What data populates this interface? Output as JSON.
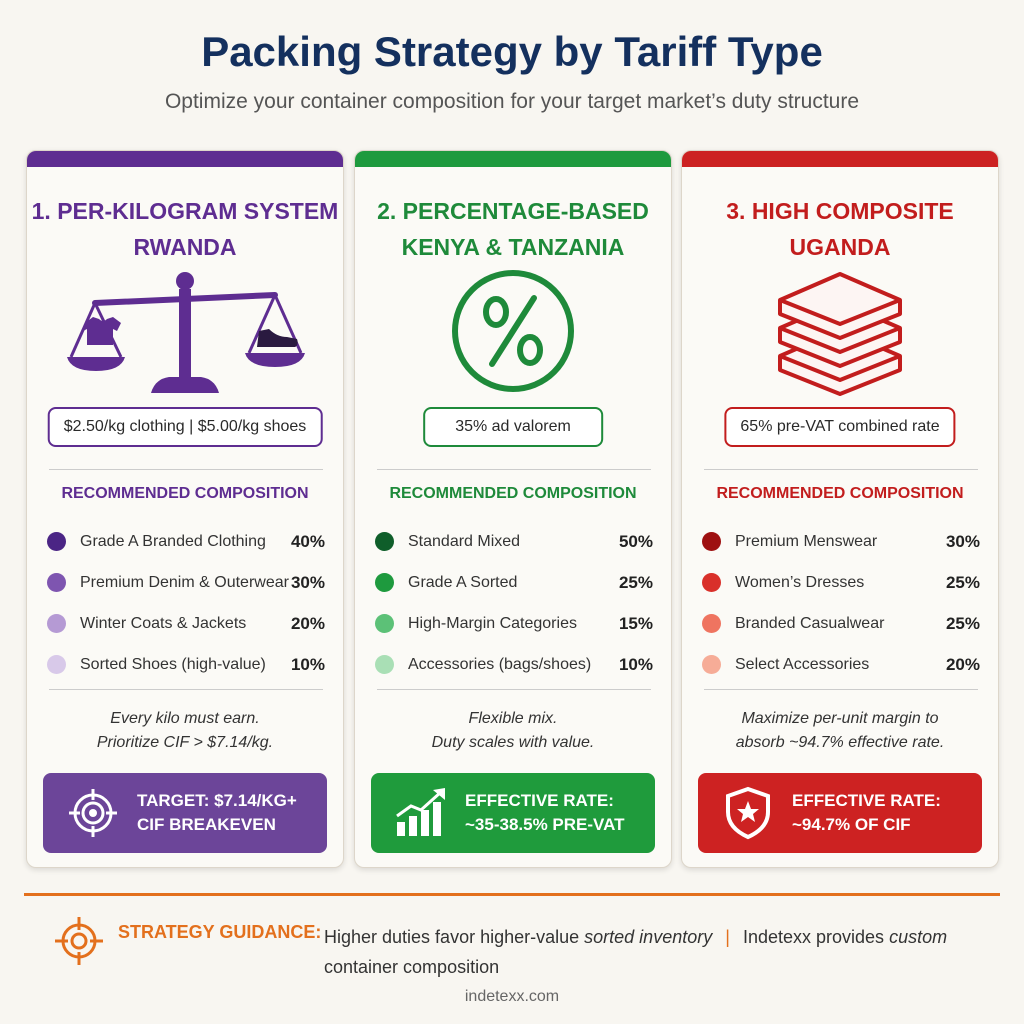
{
  "header": {
    "title": "Packing Strategy by Tariff Type",
    "subtitle": "Optimize your container composition for your target market’s duty structure"
  },
  "cards": [
    {
      "accent": "#5e2d91",
      "heading_line1": "1. Per-Kilogram System",
      "heading_line2": "Rwanda",
      "icon": "balance-scale-icon",
      "rate": "$2.50/kg clothing | $5.00/kg shoes",
      "rec_title": "RECOMMENDED COMPOSITION",
      "items": [
        {
          "label": "Grade A Branded Clothing",
          "pct": "40%",
          "color": "#4b2585"
        },
        {
          "label": "Premium Denim & Outerwear",
          "pct": "30%",
          "color": "#7e55b0"
        },
        {
          "label": "Winter Coats & Jackets",
          "pct": "20%",
          "color": "#b59ad4"
        },
        {
          "label": "Sorted Shoes (high-value)",
          "pct": "10%",
          "color": "#d8c9e9"
        }
      ],
      "note_line1": "Every kilo must earn.",
      "note_line2": "Prioritize CIF > $7.14/kg.",
      "target_bg": "#6c4599",
      "target_icon": "target-icon",
      "target_line1": "Target: $7.14/kg+",
      "target_line2": "CIF Breakeven"
    },
    {
      "accent": "#1e9a3e",
      "heading_line1": "2. Percentage-Based",
      "heading_line2": "Kenya & Tanzania",
      "icon": "percent-icon",
      "rate": "35% ad valorem",
      "rec_title": "RECOMMENDED COMPOSITION",
      "items": [
        {
          "label": "Standard Mixed",
          "pct": "50%",
          "color": "#0f5e2a"
        },
        {
          "label": "Grade A Sorted",
          "pct": "25%",
          "color": "#1e9a3e"
        },
        {
          "label": "High-Margin Categories",
          "pct": "15%",
          "color": "#5cc177"
        },
        {
          "label": "Accessories (bags/shoes)",
          "pct": "10%",
          "color": "#a9dfb5"
        }
      ],
      "note_line1": "Flexible mix.",
      "note_line2": "Duty scales with value.",
      "target_bg": "#1f9b3c",
      "target_icon": "growth-chart-icon",
      "target_line1": "Effective Rate:",
      "target_line2": "~35-38.5% Pre-VAT"
    },
    {
      "accent": "#cc2222",
      "heading_line1": "3. High Composite",
      "heading_line2": "Uganda",
      "icon": "stacked-layers-icon",
      "rate": "65% pre-VAT combined rate",
      "rec_title": "RECOMMENDED COMPOSITION",
      "items": [
        {
          "label": "Premium Menswear",
          "pct": "30%",
          "color": "#9e1010"
        },
        {
          "label": "Women’s Dresses",
          "pct": "25%",
          "color": "#d9302a"
        },
        {
          "label": "Branded Casualwear",
          "pct": "25%",
          "color": "#ef7460"
        },
        {
          "label": "Select Accessories",
          "pct": "20%",
          "color": "#f6ac97"
        }
      ],
      "note_line1": "Maximize per-unit margin to",
      "note_line2": "absorb ~94.7% effective rate.",
      "target_bg": "#cd2222",
      "target_icon": "shield-star-icon",
      "target_line1": "Effective Rate:",
      "target_line2": "~94.7% of CIF"
    }
  ],
  "guidance": {
    "icon": "crosshair-icon",
    "label": "STRATEGY GUIDANCE:",
    "text_part1": "Higher duties favor higher-value",
    "text_italic": "sorted inventory",
    "separator": "|",
    "text_part2": "Indetexx provides",
    "text_italic2": "custom",
    "text_part3": "container composition"
  },
  "site": "indetexx.com"
}
